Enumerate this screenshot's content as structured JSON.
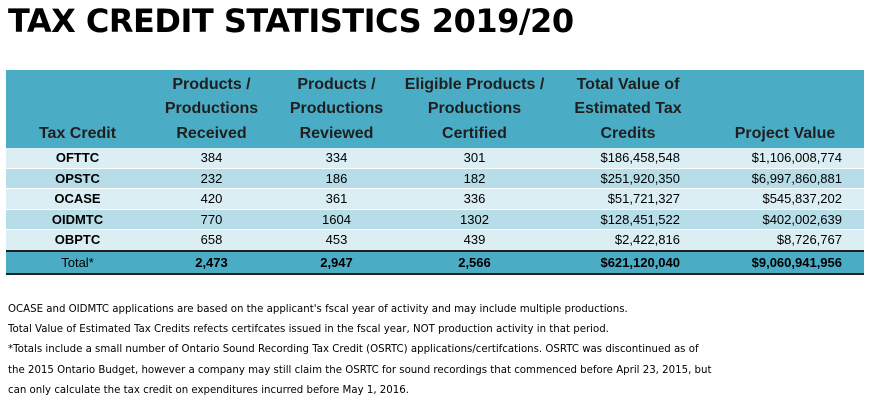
{
  "title": "TAX CREDIT STATISTICS 2019/20",
  "table": {
    "headers": [
      "Tax Credit",
      "Products / Productions Received",
      "Products / Productions Reviewed",
      "Eligible Products / Productions Certified",
      "Total Value of Estimated Tax Credits",
      "Project Value"
    ],
    "rows": [
      {
        "credit": "OFTTC",
        "received": "384",
        "reviewed": "334",
        "certified": "301",
        "tax_value": "$186,458,548",
        "project_value": "$1,106,008,774"
      },
      {
        "credit": "OPSTC",
        "received": "232",
        "reviewed": "186",
        "certified": "182",
        "tax_value": "$251,920,350",
        "project_value": "$6,997,860,881"
      },
      {
        "credit": "OCASE",
        "received": "420",
        "reviewed": "361",
        "certified": "336",
        "tax_value": "$51,721,327",
        "project_value": "$545,837,202"
      },
      {
        "credit": "OIDMTC",
        "received": "770",
        "reviewed": "1604",
        "certified": "1302",
        "tax_value": "$128,451,522",
        "project_value": "$402,002,639"
      },
      {
        "credit": "OBPTC",
        "received": "658",
        "reviewed": "453",
        "certified": "439",
        "tax_value": "$2,422,816",
        "project_value": "$8,726,767"
      }
    ],
    "total": {
      "label": "Total*",
      "received": "2,473",
      "reviewed": "2,947",
      "certified": "2,566",
      "tax_value": "$621,120,040",
      "project_value": "$9,060,941,956"
    }
  },
  "notes": [
    "OCASE and OIDMTC applications are based on the applicant's fscal year of activity and may include multiple productions.",
    "Total Value of Estimated Tax Credits refects certifcates issued in the fscal year, NOT production activity in that period.",
    "*Totals include a small number of Ontario Sound Recording Tax Credit (OSRTC) applications/certifcations. OSRTC was discontinued as of",
    "the 2015 Ontario Budget, however a company may still claim the OSRTC for sound recordings that commenced before April 23, 2015, but",
    "can only calculate the tax credit on expenditures incurred before May 1, 2016."
  ],
  "colors": {
    "header_bg": "#4bacc6",
    "row_light": "#dbeef3",
    "row_dark": "#b6dde8"
  }
}
